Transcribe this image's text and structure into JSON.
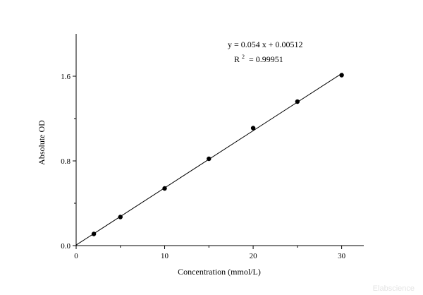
{
  "chart_data": {
    "type": "scatter",
    "xlabel": "Concentration (mmol/L)",
    "ylabel": "Absolute OD",
    "xlim": [
      0,
      32.5
    ],
    "ylim": [
      0,
      2.0
    ],
    "x_ticks": [
      0,
      10,
      20,
      30
    ],
    "x_tick_labels": [
      "0",
      "10",
      "20",
      "30"
    ],
    "y_ticks": [
      0,
      0.8,
      1.6
    ],
    "y_tick_labels": [
      "0.0",
      "0.8",
      "1.6"
    ],
    "grid": false,
    "series": [
      {
        "x": [
          2,
          5,
          10,
          15,
          20,
          25,
          30
        ],
        "y": [
          0.11,
          0.27,
          0.54,
          0.82,
          1.11,
          1.36,
          1.61
        ],
        "marker_color": "#000000"
      }
    ],
    "fit_line": {
      "slope": 0.054,
      "intercept": 0.00512,
      "x_range": [
        0,
        30.1
      ]
    },
    "annotations": {
      "equation": "y = 0.054 x + 0.00512",
      "r2_prefix": "R",
      "r2_sup": "2",
      "r2_value": "= 0.99951"
    }
  },
  "watermark": "Elabscience"
}
